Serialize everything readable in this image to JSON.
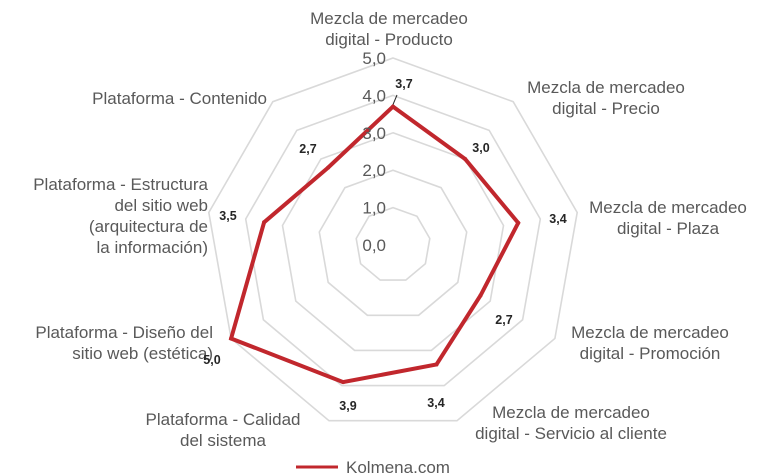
{
  "chart_data": {
    "type": "radar",
    "title": "",
    "categories": [
      [
        "Mezcla de mercadeo",
        "digital - Producto"
      ],
      [
        "Mezcla de mercadeo",
        "digital - Precio"
      ],
      [
        "Mezcla de mercadeo",
        "digital - Plaza"
      ],
      [
        "Mezcla de mercadeo",
        "digital - Promoción"
      ],
      [
        "Mezcla de mercadeo",
        "digital - Servicio al cliente"
      ],
      [
        "Plataforma - Calidad",
        "del sistema"
      ],
      [
        "Plataforma - Diseño del",
        "sitio web (estética)"
      ],
      [
        "Plataforma - Estructura",
        "del sitio web",
        "(arquitectura de",
        "la información)"
      ],
      [
        "Plataforma - Contenido"
      ]
    ],
    "series": [
      {
        "name": "Kolmena.com",
        "color": "#c1272d",
        "values": [
          3.7,
          3.0,
          3.4,
          2.7,
          3.4,
          3.9,
          5.0,
          3.5,
          2.7
        ],
        "labels": [
          "3,7",
          "3,0",
          "3,4",
          "2,7",
          "3,4",
          "3,9",
          "5,0",
          "3,5",
          "2,7"
        ]
      }
    ],
    "rlim": [
      0,
      5
    ],
    "ticks": [
      0,
      1,
      2,
      3,
      4,
      5
    ],
    "tick_labels": [
      "0,0",
      "1,0",
      "2,0",
      "3,0",
      "4,0",
      "5,0"
    ],
    "grid": true,
    "grid_color": "#d9d9d9",
    "legend_position": "bottom"
  }
}
